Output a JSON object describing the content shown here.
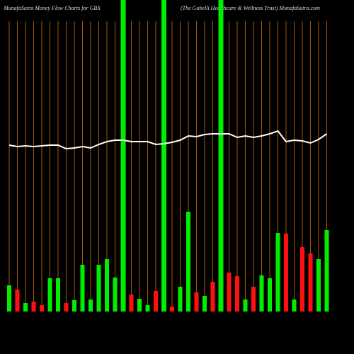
{
  "chart_data": {
    "type": "bar",
    "title": "MunafaSutra  Money Flow  Charts for GBX",
    "subtitle": "(The   Gabelli   Healthcare   & Wellness Trust) MunafaSutra.com",
    "categories": [
      null,
      null,
      null,
      null,
      null,
      null,
      null,
      null,
      null,
      null,
      null,
      null,
      null,
      null,
      null,
      null,
      null,
      null,
      null,
      null,
      null,
      null,
      null,
      null,
      null,
      null,
      null,
      null,
      null,
      null,
      null,
      null,
      null,
      null,
      null,
      null,
      null,
      null,
      null,
      null
    ],
    "values": [
      37,
      31,
      12,
      14,
      9,
      47,
      47,
      12,
      16,
      66,
      17,
      66,
      74,
      48,
      440,
      24,
      18,
      9,
      29,
      440,
      7,
      35,
      141,
      27,
      22,
      42,
      440,
      55,
      50,
      17,
      35,
      51,
      47,
      111,
      110,
      17,
      91,
      82,
      74,
      115
    ],
    "colors": [
      "#00ee00",
      "#ff1010",
      "#00ee00",
      "#ff1010",
      "#ff1010",
      "#00ee00",
      "#00ee00",
      "#ff1010",
      "#00ee00",
      "#00ee00",
      "#00ee00",
      "#00ee00",
      "#00ee00",
      "#00ee00",
      "#00ee00",
      "#ff1010",
      "#00ee00",
      "#00ee00",
      "#ff1010",
      "#00ee00",
      "#ff1010",
      "#00ee00",
      "#00ee00",
      "#ff1010",
      "#00ee00",
      "#ff1010",
      "#00ee00",
      "#ff1010",
      "#ff1010",
      "#00ee00",
      "#ff1010",
      "#00ee00",
      "#00ee00",
      "#00ee00",
      "#ff1010",
      "#00ee00",
      "#ff1010",
      "#ff1010",
      "#00ee00",
      "#00ee00"
    ],
    "line": {
      "color": "#ffffff",
      "values": [
        235,
        233,
        234,
        233,
        234,
        235,
        235,
        230,
        231,
        233,
        231,
        236,
        240,
        242,
        242,
        240,
        240,
        240,
        236,
        237,
        239,
        242,
        248,
        247,
        250,
        251,
        251,
        251,
        246,
        248,
        246,
        248,
        251,
        255,
        240,
        242,
        241,
        238,
        243,
        251
      ]
    },
    "ylim": [
      0,
      440
    ],
    "grid": true,
    "grid_color": "#a85800"
  }
}
